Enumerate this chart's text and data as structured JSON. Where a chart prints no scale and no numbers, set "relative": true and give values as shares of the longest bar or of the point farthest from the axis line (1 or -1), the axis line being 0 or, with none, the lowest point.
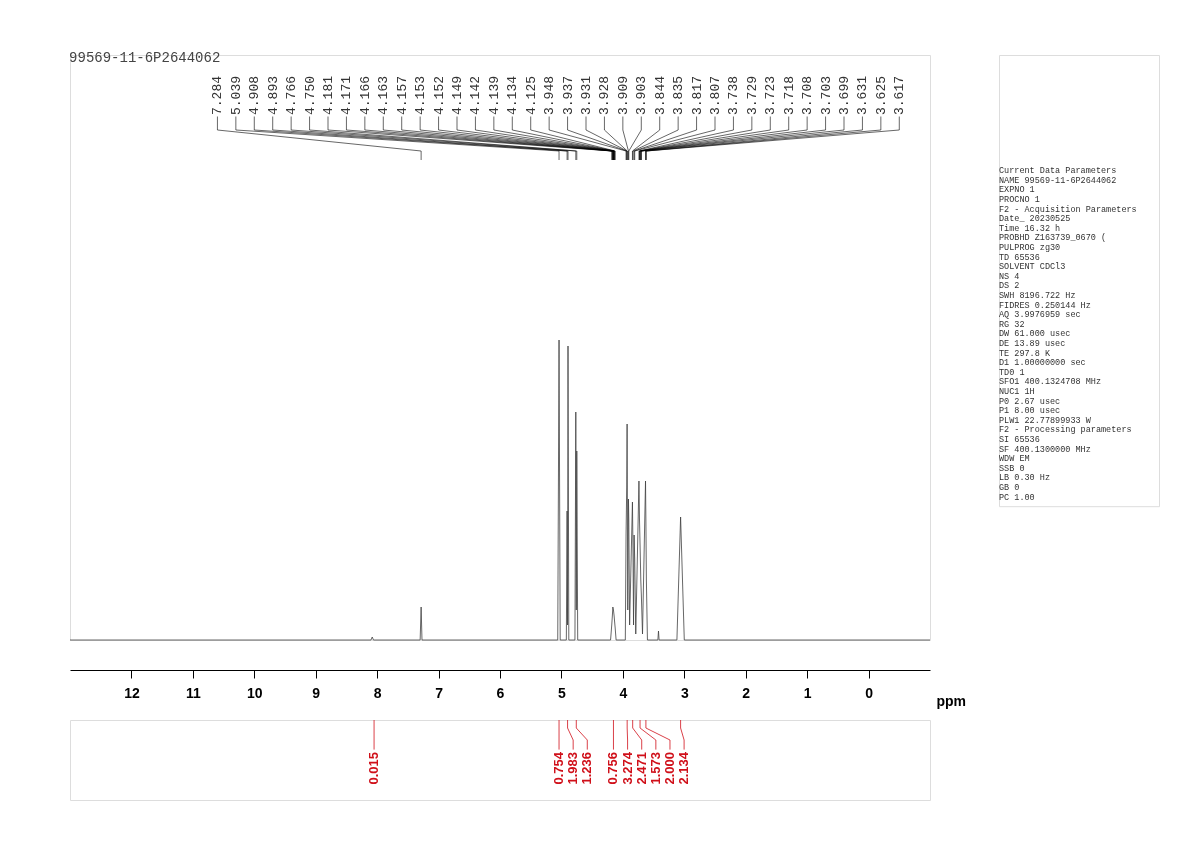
{
  "chart_data": {
    "type": "line",
    "title": "99569-11-6P2644062",
    "xlabel": "ppm",
    "relative": true,
    "color": "#404040",
    "xlim": [
      13,
      -1
    ],
    "xticks": [
      12,
      11,
      10,
      9,
      8,
      7,
      6,
      5,
      4,
      3,
      2,
      1,
      0
    ],
    "x": [
      13,
      8.1,
      8.08,
      8.06,
      7.3,
      7.284,
      7.27,
      5.06,
      5.039,
      5.02,
      4.92,
      4.908,
      4.9,
      4.893,
      4.88,
      4.78,
      4.766,
      4.758,
      4.75,
      4.735,
      4.2,
      4.181,
      4.171,
      4.163,
      4.153,
      4.142,
      4.134,
      4.125,
      4.11,
      3.96,
      3.948,
      3.937,
      3.931,
      3.92,
      3.909,
      3.903,
      3.89,
      3.844,
      3.835,
      3.826,
      3.817,
      3.807,
      3.79,
      3.738,
      3.729,
      3.718,
      3.708,
      3.699,
      3.68,
      3.631,
      3.625,
      3.617,
      3.6,
      3.43,
      3.42,
      3.41,
      3.12,
      3.06,
      3.0,
      -1
    ],
    "values": [
      0,
      0,
      0.01,
      0,
      0,
      0.11,
      0,
      0,
      1.0,
      0,
      0,
      0.43,
      0.05,
      0.98,
      0,
      0,
      0.76,
      0.1,
      0.63,
      0,
      0,
      0.05,
      0.08,
      0.11,
      0.1,
      0.08,
      0.06,
      0.04,
      0,
      0,
      0.35,
      0.51,
      0.72,
      0.1,
      0.47,
      0.4,
      0.05,
      0.46,
      0.3,
      0.05,
      0.35,
      0.27,
      0.02,
      0.53,
      0.4,
      0.3,
      0.2,
      0.15,
      0.02,
      0.53,
      0.4,
      0.2,
      0,
      0,
      0.03,
      0,
      0,
      0.41,
      0,
      0
    ],
    "annotations": [
      {
        "text": "7.284",
        "x": 7.284
      },
      {
        "text": "5.039",
        "x": 5.039
      },
      {
        "text": "4.908",
        "x": 4.908
      },
      {
        "text": "4.893",
        "x": 4.893
      },
      {
        "text": "4.766",
        "x": 4.766
      },
      {
        "text": "4.750",
        "x": 4.75
      },
      {
        "text": "4.181",
        "x": 4.181
      },
      {
        "text": "4.171",
        "x": 4.171
      },
      {
        "text": "4.166",
        "x": 4.166
      },
      {
        "text": "4.163",
        "x": 4.163
      },
      {
        "text": "4.157",
        "x": 4.157
      },
      {
        "text": "4.153",
        "x": 4.153
      },
      {
        "text": "4.152",
        "x": 4.152
      },
      {
        "text": "4.149",
        "x": 4.149
      },
      {
        "text": "4.142",
        "x": 4.142
      },
      {
        "text": "4.139",
        "x": 4.139
      },
      {
        "text": "4.134",
        "x": 4.134
      },
      {
        "text": "4.125",
        "x": 4.125
      },
      {
        "text": "3.948",
        "x": 3.948
      },
      {
        "text": "3.937",
        "x": 3.937
      },
      {
        "text": "3.931",
        "x": 3.931
      },
      {
        "text": "3.928",
        "x": 3.928
      },
      {
        "text": "3.909",
        "x": 3.909
      },
      {
        "text": "3.903",
        "x": 3.903
      },
      {
        "text": "3.844",
        "x": 3.844
      },
      {
        "text": "3.835",
        "x": 3.835
      },
      {
        "text": "3.817",
        "x": 3.817
      },
      {
        "text": "3.807",
        "x": 3.807
      },
      {
        "text": "3.738",
        "x": 3.738
      },
      {
        "text": "3.729",
        "x": 3.729
      },
      {
        "text": "3.723",
        "x": 3.723
      },
      {
        "text": "3.718",
        "x": 3.718
      },
      {
        "text": "3.708",
        "x": 3.708
      },
      {
        "text": "3.703",
        "x": 3.703
      },
      {
        "text": "3.699",
        "x": 3.699
      },
      {
        "text": "3.631",
        "x": 3.631
      },
      {
        "text": "3.625",
        "x": 3.625
      },
      {
        "text": "3.617",
        "x": 3.617
      },
      {
        "text": "0.015",
        "x": 8.05
      },
      {
        "text": "0.754",
        "x": 5.039
      },
      {
        "text": "1.983",
        "x": 4.9
      },
      {
        "text": "1.236",
        "x": 4.758
      },
      {
        "text": "0.756",
        "x": 4.153
      },
      {
        "text": "3.274",
        "x": 3.93
      },
      {
        "text": "2.471",
        "x": 3.84
      },
      {
        "text": "1.573",
        "x": 3.72
      },
      {
        "text": "2.000",
        "x": 3.625
      },
      {
        "text": "2.134",
        "x": 3.06
      },
      "Current Data Parameters",
      "NAME     99569-11-6P2644062",
      "EXPNO                     1",
      "PROCNO                    1",
      "F2 - Acquisition Parameters",
      "Date_             20230525",
      "Time               16.32 h",
      "PROBHD   Z163739_0670 (",
      "PULPROG               zg30",
      "TD                   65536",
      "SOLVENT              CDCl3",
      "NS                       4",
      "DS                       2",
      "SWH           8196.722 Hz",
      "FIDRES        0.250144 Hz",
      "AQ           3.9976959 sec",
      "RG                      32",
      "DW              61.000 usec",
      "DE               13.89 usec",
      "TE                297.8 K",
      "D1          1.00000000 sec",
      "TD0                      1",
      "SFO1       400.1324708 MHz",
      "NUC1                    1H",
      "P0                2.67 usec",
      "P1                8.00 usec",
      "PLW1        22.77899933 W",
      "F2 - Processing parameters",
      "SI                   65536",
      "SF         400.1300000 MHz",
      "WDW                     EM",
      "SSB                      0",
      "LB                 0.30 Hz",
      "GB                       0",
      "PC                    1.00"
    ]
  }
}
